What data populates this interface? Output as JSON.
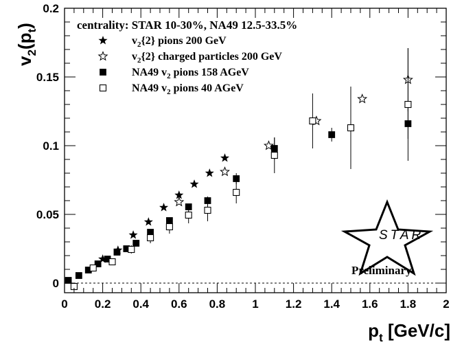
{
  "chart_data": {
    "type": "scatter",
    "title": "",
    "xlabel": "p",
    "xlabel_sub": "t",
    "xlabel_unit": "[GeV/c]",
    "ylabel": "v",
    "ylabel_sub": "2",
    "ylabel_arg": "(p",
    "ylabel_arg_sub": "t",
    "ylabel_close": ")",
    "xlim": [
      0,
      2
    ],
    "ylim": [
      -0.007,
      0.2
    ],
    "x_ticks": [
      0,
      0.2,
      0.4,
      0.6,
      0.8,
      1,
      1.2,
      1.4,
      1.6,
      1.8,
      2
    ],
    "x_tick_labels": [
      "0",
      "0.2",
      "0.4",
      "0.6",
      "0.8",
      "1",
      "1.2",
      "1.4",
      "1.6",
      "1.8",
      "2"
    ],
    "y_ticks": [
      0,
      0.05,
      0.1,
      0.15,
      0.2
    ],
    "y_tick_labels": [
      "0",
      "0.05",
      "0.1",
      "0.15",
      "0.2"
    ],
    "zero_line": 0,
    "legend": {
      "title": "centrality: STAR 10-30%, NA49 12.5-33.5%",
      "placement": "top-left",
      "entries": [
        {
          "series": 0,
          "prefix": "v",
          "sub": "2",
          "suffix": "{2} pions 200 GeV"
        },
        {
          "series": 1,
          "prefix": "v",
          "sub": "2",
          "suffix": "{2} charged particles 200 GeV"
        },
        {
          "series": 2,
          "prefix": "NA49 v",
          "sub": "2",
          "suffix": " pions 158 AGeV"
        },
        {
          "series": 3,
          "prefix": "NA49 v",
          "sub": "2",
          "suffix": " pions 40 AGeV"
        }
      ]
    },
    "series": [
      {
        "name": "v2{2} pions 200 GeV",
        "marker": "star-filled",
        "points": [
          {
            "x": 0.2,
            "y": 0.0175,
            "err": 0.001
          },
          {
            "x": 0.28,
            "y": 0.024,
            "err": 0.001
          },
          {
            "x": 0.36,
            "y": 0.035,
            "err": 0.001
          },
          {
            "x": 0.44,
            "y": 0.0445,
            "err": 0.001
          },
          {
            "x": 0.52,
            "y": 0.055,
            "err": 0.001
          },
          {
            "x": 0.6,
            "y": 0.064,
            "err": 0.001
          },
          {
            "x": 0.68,
            "y": 0.072,
            "err": 0.001
          },
          {
            "x": 0.76,
            "y": 0.08,
            "err": 0.001
          },
          {
            "x": 0.84,
            "y": 0.091,
            "err": 0.001
          }
        ]
      },
      {
        "name": "v2{2} charged particles 200 GeV",
        "marker": "star-open",
        "points": [
          {
            "x": 0.6,
            "y": 0.059,
            "err": 0.001
          },
          {
            "x": 0.84,
            "y": 0.081,
            "err": 0.001
          },
          {
            "x": 1.07,
            "y": 0.1,
            "err": 0.001
          },
          {
            "x": 1.32,
            "y": 0.118,
            "err": 0.001
          },
          {
            "x": 1.56,
            "y": 0.134,
            "err": 0.001
          },
          {
            "x": 1.8,
            "y": 0.148,
            "err": 0.023
          }
        ]
      },
      {
        "name": "NA49 v2 pions 158 AGeV",
        "marker": "square-filled",
        "points": [
          {
            "x": 0.02,
            "y": 0.002,
            "err": 0.0
          },
          {
            "x": 0.075,
            "y": 0.0055,
            "err": 0.0
          },
          {
            "x": 0.125,
            "y": 0.0095,
            "err": 0.0
          },
          {
            "x": 0.175,
            "y": 0.014,
            "err": 0.0
          },
          {
            "x": 0.225,
            "y": 0.0175,
            "err": 0.0
          },
          {
            "x": 0.275,
            "y": 0.0225,
            "err": 0.001
          },
          {
            "x": 0.325,
            "y": 0.025,
            "err": 0.001
          },
          {
            "x": 0.375,
            "y": 0.029,
            "err": 0.001
          },
          {
            "x": 0.45,
            "y": 0.037,
            "err": 0.002
          },
          {
            "x": 0.55,
            "y": 0.0455,
            "err": 0.002
          },
          {
            "x": 0.65,
            "y": 0.0555,
            "err": 0.002
          },
          {
            "x": 0.75,
            "y": 0.06,
            "err": 0.003
          },
          {
            "x": 0.9,
            "y": 0.076,
            "err": 0.004
          },
          {
            "x": 1.1,
            "y": 0.098,
            "err": 0.008
          },
          {
            "x": 1.4,
            "y": 0.108,
            "err": 0.005
          },
          {
            "x": 1.8,
            "y": 0.116,
            "err": 0.011
          }
        ]
      },
      {
        "name": "NA49 v2 pions 40 AGeV",
        "marker": "square-open",
        "points": [
          {
            "x": 0.05,
            "y": -0.0025,
            "err": 0.0
          },
          {
            "x": 0.15,
            "y": 0.011,
            "err": 0.001
          },
          {
            "x": 0.25,
            "y": 0.0155,
            "err": 0.002
          },
          {
            "x": 0.35,
            "y": 0.0245,
            "err": 0.003
          },
          {
            "x": 0.45,
            "y": 0.033,
            "err": 0.004
          },
          {
            "x": 0.55,
            "y": 0.041,
            "err": 0.005
          },
          {
            "x": 0.65,
            "y": 0.0495,
            "err": 0.006
          },
          {
            "x": 0.75,
            "y": 0.053,
            "err": 0.008
          },
          {
            "x": 0.9,
            "y": 0.066,
            "err": 0.008
          },
          {
            "x": 1.1,
            "y": 0.093,
            "err": 0.013
          },
          {
            "x": 1.3,
            "y": 0.118,
            "err": 0.02
          },
          {
            "x": 1.5,
            "y": 0.113,
            "err": 0.03
          },
          {
            "x": 1.8,
            "y": 0.13,
            "err": 0.041
          }
        ]
      }
    ]
  },
  "logo": {
    "text": "STAR",
    "label": "Preliminary"
  }
}
